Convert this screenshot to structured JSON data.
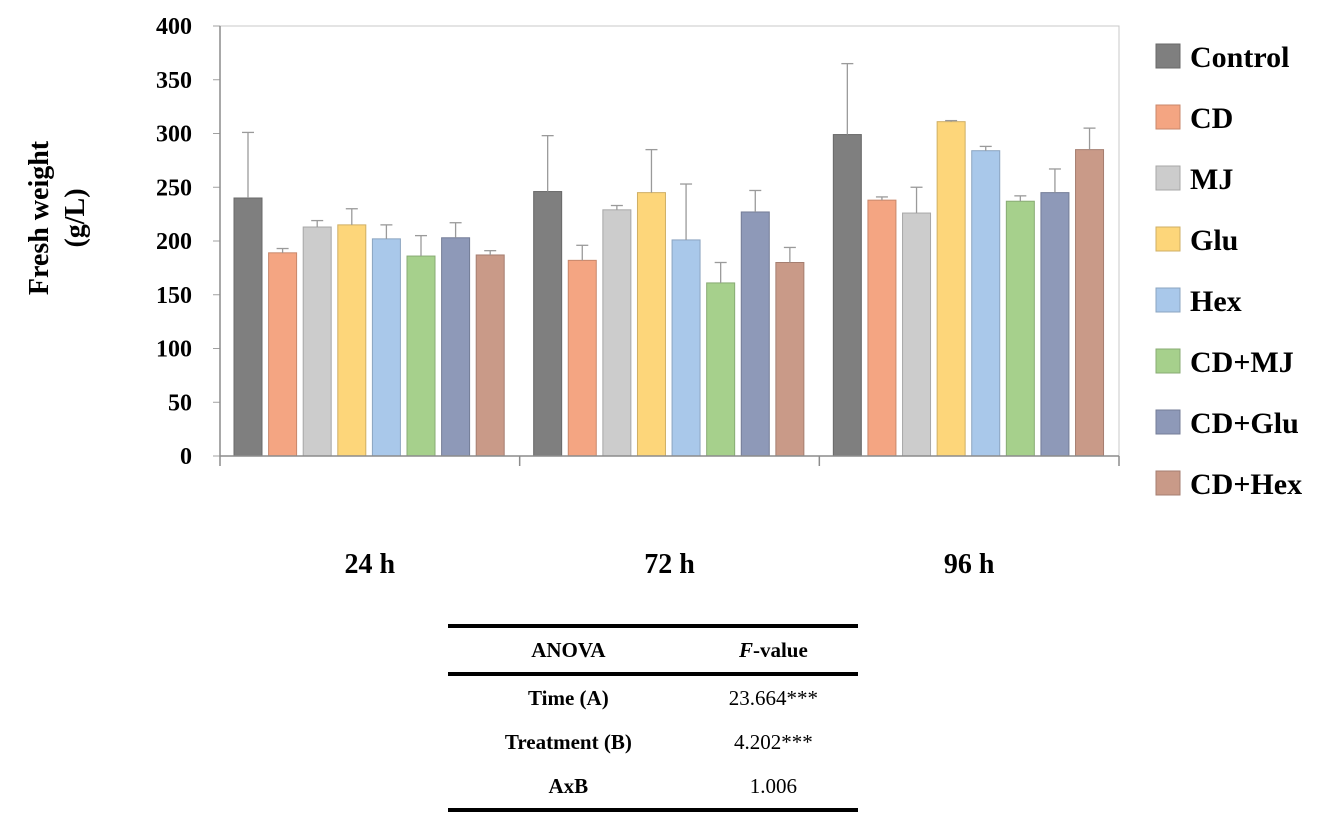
{
  "chart_data": {
    "type": "bar",
    "title": "",
    "xlabel": "",
    "ylabel_line1": "Fresh weight",
    "ylabel_line2": "(g/L)",
    "ylim": [
      0,
      400
    ],
    "yticks": [
      0,
      50,
      100,
      150,
      200,
      250,
      300,
      350,
      400
    ],
    "categories": [
      "24 h",
      "72 h",
      "96 h"
    ],
    "legend_position": "right",
    "series": [
      {
        "name": "Control",
        "color": "#7f7f7f",
        "values": [
          240,
          246,
          299
        ],
        "errors": [
          61,
          52,
          66
        ]
      },
      {
        "name": "CD",
        "color": "#f4a582",
        "values": [
          189,
          182,
          238
        ],
        "errors": [
          4,
          14,
          3
        ]
      },
      {
        "name": "MJ",
        "color": "#cccccc",
        "values": [
          213,
          229,
          226
        ],
        "errors": [
          6,
          4,
          24
        ]
      },
      {
        "name": "Glu",
        "color": "#fdd67a",
        "values": [
          215,
          245,
          311
        ],
        "errors": [
          15,
          40,
          1
        ]
      },
      {
        "name": "Hex",
        "color": "#a9c8ea",
        "values": [
          202,
          201,
          284
        ],
        "errors": [
          13,
          52,
          4
        ]
      },
      {
        "name": "CD+MJ",
        "color": "#a6d08c",
        "values": [
          186,
          161,
          237
        ],
        "errors": [
          19,
          19,
          5
        ]
      },
      {
        "name": "CD+Glu",
        "color": "#8e99b8",
        "values": [
          203,
          227,
          245
        ],
        "errors": [
          14,
          20,
          22
        ]
      },
      {
        "name": "CD+Hex",
        "color": "#c99a88",
        "values": [
          187,
          180,
          285
        ],
        "errors": [
          4,
          14,
          20
        ]
      }
    ]
  },
  "anova": {
    "header": {
      "col1": "ANOVA",
      "col2_italic": "F",
      "col2_rest": "-value"
    },
    "rows": [
      {
        "label": "Time (A)",
        "value": "23.664***"
      },
      {
        "label": "Treatment (B)",
        "value": "4.202***"
      },
      {
        "label": "AxB",
        "value": "1.006"
      }
    ]
  }
}
